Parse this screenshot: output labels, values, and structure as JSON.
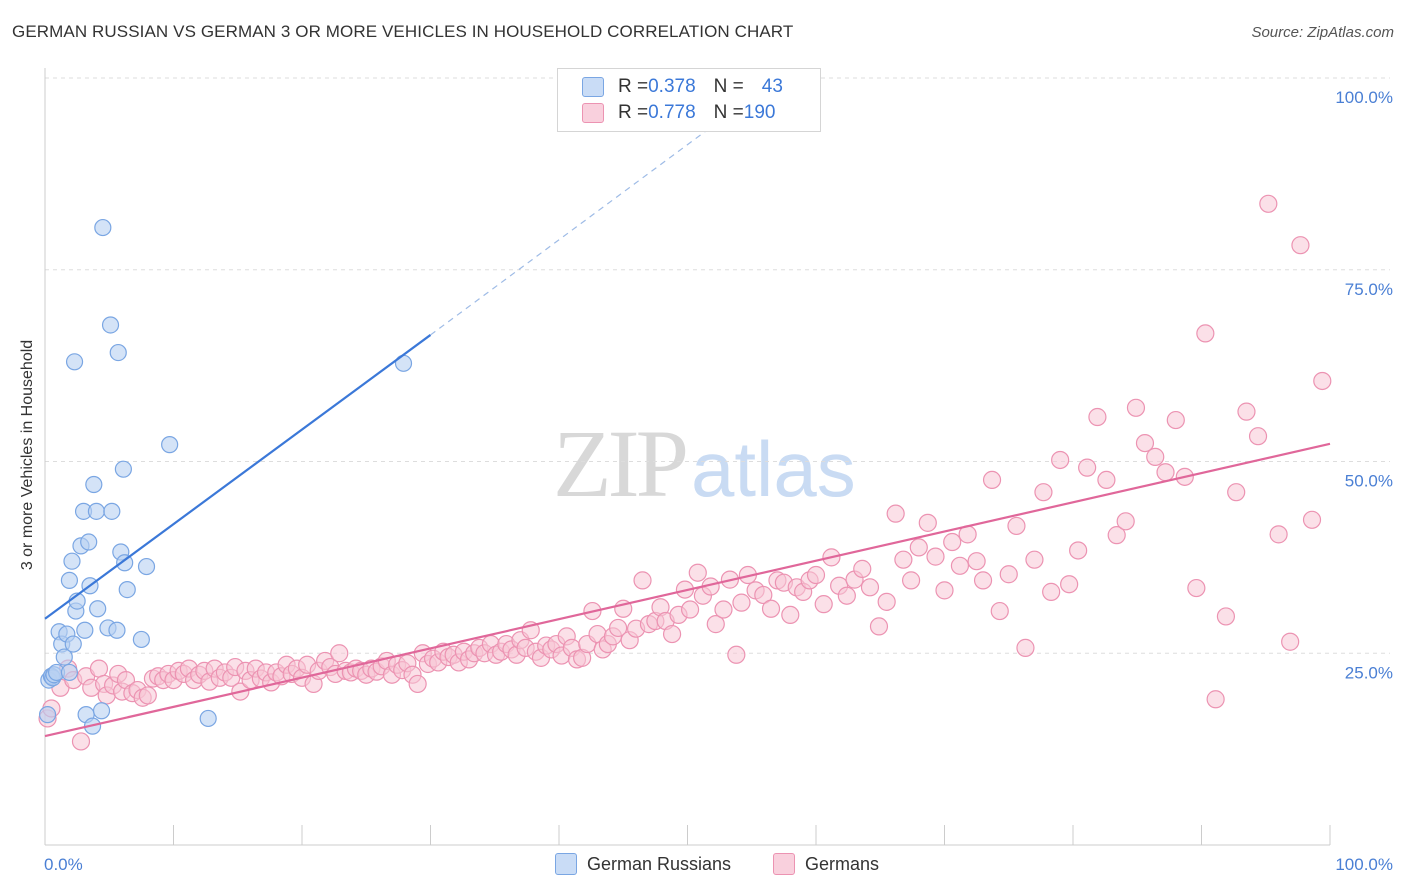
{
  "header": {
    "title": "GERMAN RUSSIAN VS GERMAN 3 OR MORE VEHICLES IN HOUSEHOLD CORRELATION CHART",
    "source": "Source: ZipAtlas.com"
  },
  "watermark": {
    "zip": "ZIP",
    "atlas": "atlas"
  },
  "legend_top": [
    {
      "r_label": "R = ",
      "r_value": "0.378",
      "n_label": "N = ",
      "n_value": "43",
      "color": "#a9c8f0"
    },
    {
      "r_label": "R = ",
      "r_value": "0.778",
      "n_label": "N = ",
      "n_value": "190",
      "color": "#f4b6c9"
    }
  ],
  "legend_bottom": [
    {
      "label": "German Russians",
      "color": "#a9c8f0"
    },
    {
      "label": "Germans",
      "color": "#f4b6c9"
    }
  ],
  "colors": {
    "blue_fill": "#b7d0f2",
    "blue_stroke": "#7aa6e3",
    "blue_line": "#3b78d8",
    "pink_fill": "#f7c6d6",
    "pink_stroke": "#ec93b2",
    "pink_line": "#e0679a",
    "tick_text": "#4a7fd4",
    "grid": "#dddddd"
  },
  "chart_data": {
    "type": "scatter",
    "title": "GERMAN RUSSIAN VS GERMAN 3 OR MORE VEHICLES IN HOUSEHOLD CORRELATION CHART",
    "xlabel": "",
    "ylabel": "3 or more Vehicles in Household",
    "xlim": [
      0,
      100
    ],
    "ylim": [
      0,
      100
    ],
    "x_tick_labels": [
      "0.0%",
      "100.0%"
    ],
    "y_tick_labels": [
      "25.0%",
      "50.0%",
      "75.0%",
      "100.0%"
    ],
    "y_ticks": [
      25,
      50,
      75,
      100
    ],
    "x_minor_ticks": [
      0,
      10,
      20,
      30,
      40,
      50,
      60,
      70,
      80,
      90,
      100
    ],
    "grid": "horizontal dashed",
    "legend": "top-center",
    "series": [
      {
        "name": "German Russians",
        "R": 0.378,
        "N": 43,
        "trend": {
          "x": [
            0,
            30
          ],
          "y": [
            29.5,
            66.5
          ],
          "extend_to": [
            57,
            100
          ]
        },
        "points": [
          [
            0.3,
            21.5
          ],
          [
            0.5,
            22
          ],
          [
            0.6,
            21.8
          ],
          [
            0.7,
            22.2
          ],
          [
            0.9,
            22.5
          ],
          [
            1.1,
            27.8
          ],
          [
            1.3,
            26.2
          ],
          [
            1.5,
            24.5
          ],
          [
            1.7,
            27.5
          ],
          [
            1.9,
            34.5
          ],
          [
            1.9,
            22.5
          ],
          [
            2.1,
            37
          ],
          [
            2.2,
            26.2
          ],
          [
            2.3,
            63
          ],
          [
            2.4,
            30.5
          ],
          [
            2.5,
            31.8
          ],
          [
            2.8,
            39
          ],
          [
            3.0,
            43.5
          ],
          [
            3.1,
            28
          ],
          [
            3.2,
            17
          ],
          [
            3.4,
            39.5
          ],
          [
            3.5,
            33.8
          ],
          [
            3.7,
            15.5
          ],
          [
            3.8,
            47
          ],
          [
            4.0,
            43.5
          ],
          [
            4.1,
            30.8
          ],
          [
            4.4,
            17.5
          ],
          [
            4.5,
            80.5
          ],
          [
            4.9,
            28.3
          ],
          [
            5.1,
            67.8
          ],
          [
            5.2,
            43.5
          ],
          [
            5.6,
            28
          ],
          [
            5.7,
            64.2
          ],
          [
            5.9,
            38.2
          ],
          [
            6.1,
            49
          ],
          [
            6.2,
            36.8
          ],
          [
            6.4,
            33.3
          ],
          [
            7.5,
            26.8
          ],
          [
            7.9,
            36.3
          ],
          [
            9.7,
            52.2
          ],
          [
            12.7,
            16.5
          ],
          [
            27.9,
            62.8
          ],
          [
            0.2,
            17
          ]
        ]
      },
      {
        "name": "Germans",
        "R": 0.778,
        "N": 190,
        "trend": {
          "x": [
            0,
            100
          ],
          "y": [
            14.2,
            52.3
          ]
        },
        "points": [
          [
            0.2,
            16.5
          ],
          [
            0.5,
            17.8
          ],
          [
            1.2,
            20.5
          ],
          [
            1.8,
            23
          ],
          [
            2.2,
            21.5
          ],
          [
            2.8,
            13.5
          ],
          [
            3.2,
            22
          ],
          [
            3.6,
            20.5
          ],
          [
            4.2,
            23
          ],
          [
            4.6,
            21
          ],
          [
            4.8,
            19.5
          ],
          [
            5.3,
            20.8
          ],
          [
            5.7,
            22.3
          ],
          [
            6.0,
            20
          ],
          [
            6.3,
            21.5
          ],
          [
            6.8,
            19.8
          ],
          [
            7.2,
            20.2
          ],
          [
            7.6,
            19.2
          ],
          [
            8.0,
            19.5
          ],
          [
            8.4,
            21.7
          ],
          [
            8.8,
            22
          ],
          [
            9.2,
            21.5
          ],
          [
            9.6,
            22.3
          ],
          [
            10.0,
            21.5
          ],
          [
            10.4,
            22.7
          ],
          [
            10.8,
            22.3
          ],
          [
            11.2,
            23
          ],
          [
            11.6,
            21.5
          ],
          [
            12.0,
            22.2
          ],
          [
            12.4,
            22.7
          ],
          [
            12.8,
            21.3
          ],
          [
            13.2,
            23
          ],
          [
            13.6,
            21.8
          ],
          [
            14.0,
            22.5
          ],
          [
            14.5,
            21.8
          ],
          [
            14.8,
            23.2
          ],
          [
            15.2,
            20
          ],
          [
            15.6,
            22.7
          ],
          [
            16.0,
            21.5
          ],
          [
            16.4,
            23
          ],
          [
            16.8,
            21.7
          ],
          [
            17.2,
            22.5
          ],
          [
            17.6,
            21.2
          ],
          [
            18.0,
            22.5
          ],
          [
            18.4,
            22
          ],
          [
            18.8,
            23.5
          ],
          [
            19.2,
            22.3
          ],
          [
            19.6,
            23
          ],
          [
            20.0,
            21.8
          ],
          [
            20.4,
            23.5
          ],
          [
            20.9,
            21
          ],
          [
            21.3,
            22.7
          ],
          [
            21.8,
            24
          ],
          [
            22.2,
            23.2
          ],
          [
            22.6,
            22.3
          ],
          [
            22.9,
            25
          ],
          [
            23.4,
            22.7
          ],
          [
            23.8,
            22.5
          ],
          [
            24.2,
            23
          ],
          [
            24.6,
            22.7
          ],
          [
            25.0,
            22.2
          ],
          [
            25.4,
            23
          ],
          [
            25.8,
            22.6
          ],
          [
            26.2,
            23.3
          ],
          [
            26.6,
            24
          ],
          [
            27.0,
            22.2
          ],
          [
            27.4,
            23.5
          ],
          [
            27.8,
            22.8
          ],
          [
            28.2,
            23.7
          ],
          [
            28.6,
            22.2
          ],
          [
            29.0,
            21
          ],
          [
            29.4,
            25
          ],
          [
            29.8,
            23.6
          ],
          [
            30.2,
            24.3
          ],
          [
            30.6,
            23.8
          ],
          [
            31.0,
            25.2
          ],
          [
            31.4,
            24.5
          ],
          [
            31.8,
            24.8
          ],
          [
            32.2,
            23.8
          ],
          [
            32.6,
            25.2
          ],
          [
            33.0,
            24.2
          ],
          [
            33.4,
            25
          ],
          [
            33.8,
            25.7
          ],
          [
            34.2,
            25
          ],
          [
            34.7,
            26.2
          ],
          [
            35.1,
            24.8
          ],
          [
            35.5,
            25.2
          ],
          [
            35.9,
            26.2
          ],
          [
            36.3,
            25.5
          ],
          [
            36.7,
            24.8
          ],
          [
            37.0,
            26.7
          ],
          [
            37.4,
            25.7
          ],
          [
            37.8,
            28
          ],
          [
            38.2,
            25.2
          ],
          [
            38.6,
            24.4
          ],
          [
            39.0,
            26
          ],
          [
            39.4,
            25.5
          ],
          [
            39.8,
            26.2
          ],
          [
            40.2,
            24.7
          ],
          [
            40.6,
            27.2
          ],
          [
            41.0,
            25.7
          ],
          [
            41.4,
            24.2
          ],
          [
            41.8,
            24.4
          ],
          [
            42.2,
            26.2
          ],
          [
            42.6,
            30.5
          ],
          [
            43.0,
            27.5
          ],
          [
            43.4,
            25.5
          ],
          [
            43.8,
            26.2
          ],
          [
            44.2,
            27.2
          ],
          [
            44.6,
            28.3
          ],
          [
            45.0,
            30.8
          ],
          [
            45.5,
            26.7
          ],
          [
            46.0,
            28.2
          ],
          [
            46.5,
            34.5
          ],
          [
            47.0,
            28.8
          ],
          [
            47.5,
            29.2
          ],
          [
            47.9,
            31
          ],
          [
            48.3,
            29.2
          ],
          [
            48.8,
            27.5
          ],
          [
            49.3,
            30
          ],
          [
            49.8,
            33.3
          ],
          [
            50.2,
            30.7
          ],
          [
            50.8,
            35.5
          ],
          [
            51.2,
            32.5
          ],
          [
            51.8,
            33.7
          ],
          [
            52.2,
            28.8
          ],
          [
            52.8,
            30.7
          ],
          [
            53.3,
            34.6
          ],
          [
            53.8,
            24.8
          ],
          [
            54.2,
            31.6
          ],
          [
            54.7,
            35.2
          ],
          [
            55.3,
            33.2
          ],
          [
            55.9,
            32.6
          ],
          [
            56.5,
            30.8
          ],
          [
            57.0,
            34.5
          ],
          [
            57.5,
            34.2
          ],
          [
            58.0,
            30
          ],
          [
            58.5,
            33.6
          ],
          [
            59.0,
            33
          ],
          [
            59.5,
            34.5
          ],
          [
            60.0,
            35.2
          ],
          [
            60.6,
            31.4
          ],
          [
            61.2,
            37.5
          ],
          [
            61.8,
            33.8
          ],
          [
            62.4,
            32.5
          ],
          [
            63.0,
            34.6
          ],
          [
            63.6,
            36
          ],
          [
            64.2,
            33.6
          ],
          [
            64.9,
            28.5
          ],
          [
            65.5,
            31.7
          ],
          [
            66.2,
            43.2
          ],
          [
            66.8,
            37.2
          ],
          [
            67.4,
            34.5
          ],
          [
            68.0,
            38.8
          ],
          [
            68.7,
            42
          ],
          [
            69.3,
            37.6
          ],
          [
            70.0,
            33.2
          ],
          [
            70.6,
            39.5
          ],
          [
            71.2,
            36.4
          ],
          [
            71.8,
            40.5
          ],
          [
            72.5,
            37
          ],
          [
            73.0,
            34.5
          ],
          [
            73.7,
            47.6
          ],
          [
            74.3,
            30.5
          ],
          [
            75.0,
            35.3
          ],
          [
            75.6,
            41.6
          ],
          [
            76.3,
            25.7
          ],
          [
            77.0,
            37.2
          ],
          [
            77.7,
            46
          ],
          [
            78.3,
            33
          ],
          [
            79.0,
            50.2
          ],
          [
            79.7,
            34
          ],
          [
            80.4,
            38.4
          ],
          [
            81.1,
            49.2
          ],
          [
            81.9,
            55.8
          ],
          [
            82.6,
            47.6
          ],
          [
            83.4,
            40.4
          ],
          [
            84.1,
            42.2
          ],
          [
            84.9,
            57
          ],
          [
            85.6,
            52.4
          ],
          [
            86.4,
            50.6
          ],
          [
            87.2,
            48.6
          ],
          [
            88.0,
            55.4
          ],
          [
            88.7,
            48
          ],
          [
            89.6,
            33.5
          ],
          [
            90.3,
            66.7
          ],
          [
            91.1,
            19
          ],
          [
            91.9,
            29.8
          ],
          [
            92.7,
            46
          ],
          [
            93.5,
            56.5
          ],
          [
            94.4,
            53.3
          ],
          [
            95.2,
            83.6
          ],
          [
            96.0,
            40.5
          ],
          [
            96.9,
            26.5
          ],
          [
            97.7,
            78.2
          ],
          [
            98.6,
            42.4
          ],
          [
            99.4,
            60.5
          ]
        ]
      }
    ]
  }
}
